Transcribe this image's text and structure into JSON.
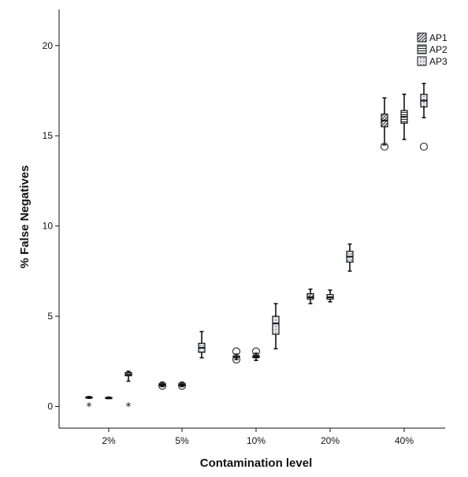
{
  "chart_data": {
    "type": "boxplot",
    "title": "",
    "xlabel": "Contamination level",
    "ylabel": "% False Negatives",
    "ylim": [
      -1.2,
      22
    ],
    "yticks": [
      0,
      5,
      10,
      15,
      20
    ],
    "categories": [
      "2%",
      "5%",
      "10%",
      "20%",
      "40%"
    ],
    "legend": {
      "placement": "top-right",
      "entries": [
        {
          "name": "AP1",
          "pattern": "diagonal"
        },
        {
          "name": "AP2",
          "pattern": "horizontal"
        },
        {
          "name": "AP3",
          "pattern": "dotted"
        }
      ]
    },
    "colors": {
      "box_fill": "#e4e8f0",
      "box_stroke": "#111111",
      "axis": "#111111"
    },
    "series": [
      {
        "name": "AP1",
        "boxes": [
          {
            "category": "2%",
            "min": 0.45,
            "q1": 0.47,
            "median": 0.5,
            "q3": 0.53,
            "max": 0.55,
            "outliers": [],
            "extremes": [
              0.0
            ]
          },
          {
            "category": "5%",
            "min": 1.1,
            "q1": 1.15,
            "median": 1.2,
            "q3": 1.28,
            "max": 1.35,
            "outliers": [
              1.15
            ],
            "extremes": []
          },
          {
            "category": "10%",
            "min": 2.6,
            "q1": 2.7,
            "median": 2.75,
            "q3": 2.8,
            "max": 2.9,
            "outliers": [
              2.6,
              3.05
            ],
            "extremes": []
          },
          {
            "category": "20%",
            "min": 5.7,
            "q1": 5.95,
            "median": 6.05,
            "q3": 6.25,
            "max": 6.5,
            "outliers": [],
            "extremes": []
          },
          {
            "category": "40%",
            "min": 14.5,
            "q1": 15.5,
            "median": 15.85,
            "q3": 16.2,
            "max": 17.1,
            "outliers": [
              14.4
            ],
            "extremes": []
          }
        ]
      },
      {
        "name": "AP2",
        "boxes": [
          {
            "category": "2%",
            "min": 0.44,
            "q1": 0.46,
            "median": 0.48,
            "q3": 0.5,
            "max": 0.52,
            "outliers": [],
            "extremes": []
          },
          {
            "category": "5%",
            "min": 1.1,
            "q1": 1.15,
            "median": 1.2,
            "q3": 1.28,
            "max": 1.35,
            "outliers": [
              1.15
            ],
            "extremes": []
          },
          {
            "category": "10%",
            "min": 2.55,
            "q1": 2.7,
            "median": 2.75,
            "q3": 2.82,
            "max": 2.95,
            "outliers": [
              3.05
            ],
            "extremes": []
          },
          {
            "category": "20%",
            "min": 5.8,
            "q1": 5.95,
            "median": 6.05,
            "q3": 6.2,
            "max": 6.45,
            "outliers": [],
            "extremes": []
          },
          {
            "category": "40%",
            "min": 14.8,
            "q1": 15.7,
            "median": 16.05,
            "q3": 16.4,
            "max": 17.3,
            "outliers": [],
            "extremes": []
          }
        ]
      },
      {
        "name": "AP3",
        "boxes": [
          {
            "category": "2%",
            "min": 1.4,
            "q1": 1.7,
            "median": 1.78,
            "q3": 1.88,
            "max": 1.95,
            "outliers": [],
            "extremes": [
              0.0
            ]
          },
          {
            "category": "5%",
            "min": 2.7,
            "q1": 3.0,
            "median": 3.25,
            "q3": 3.5,
            "max": 4.15,
            "outliers": [],
            "extremes": []
          },
          {
            "category": "10%",
            "min": 3.2,
            "q1": 4.0,
            "median": 4.6,
            "q3": 5.0,
            "max": 5.7,
            "outliers": [],
            "extremes": []
          },
          {
            "category": "20%",
            "min": 7.5,
            "q1": 8.0,
            "median": 8.3,
            "q3": 8.6,
            "max": 9.0,
            "outliers": [],
            "extremes": []
          },
          {
            "category": "40%",
            "min": 16.0,
            "q1": 16.6,
            "median": 16.95,
            "q3": 17.3,
            "max": 17.9,
            "outliers": [
              14.4
            ],
            "extremes": []
          }
        ]
      }
    ]
  }
}
